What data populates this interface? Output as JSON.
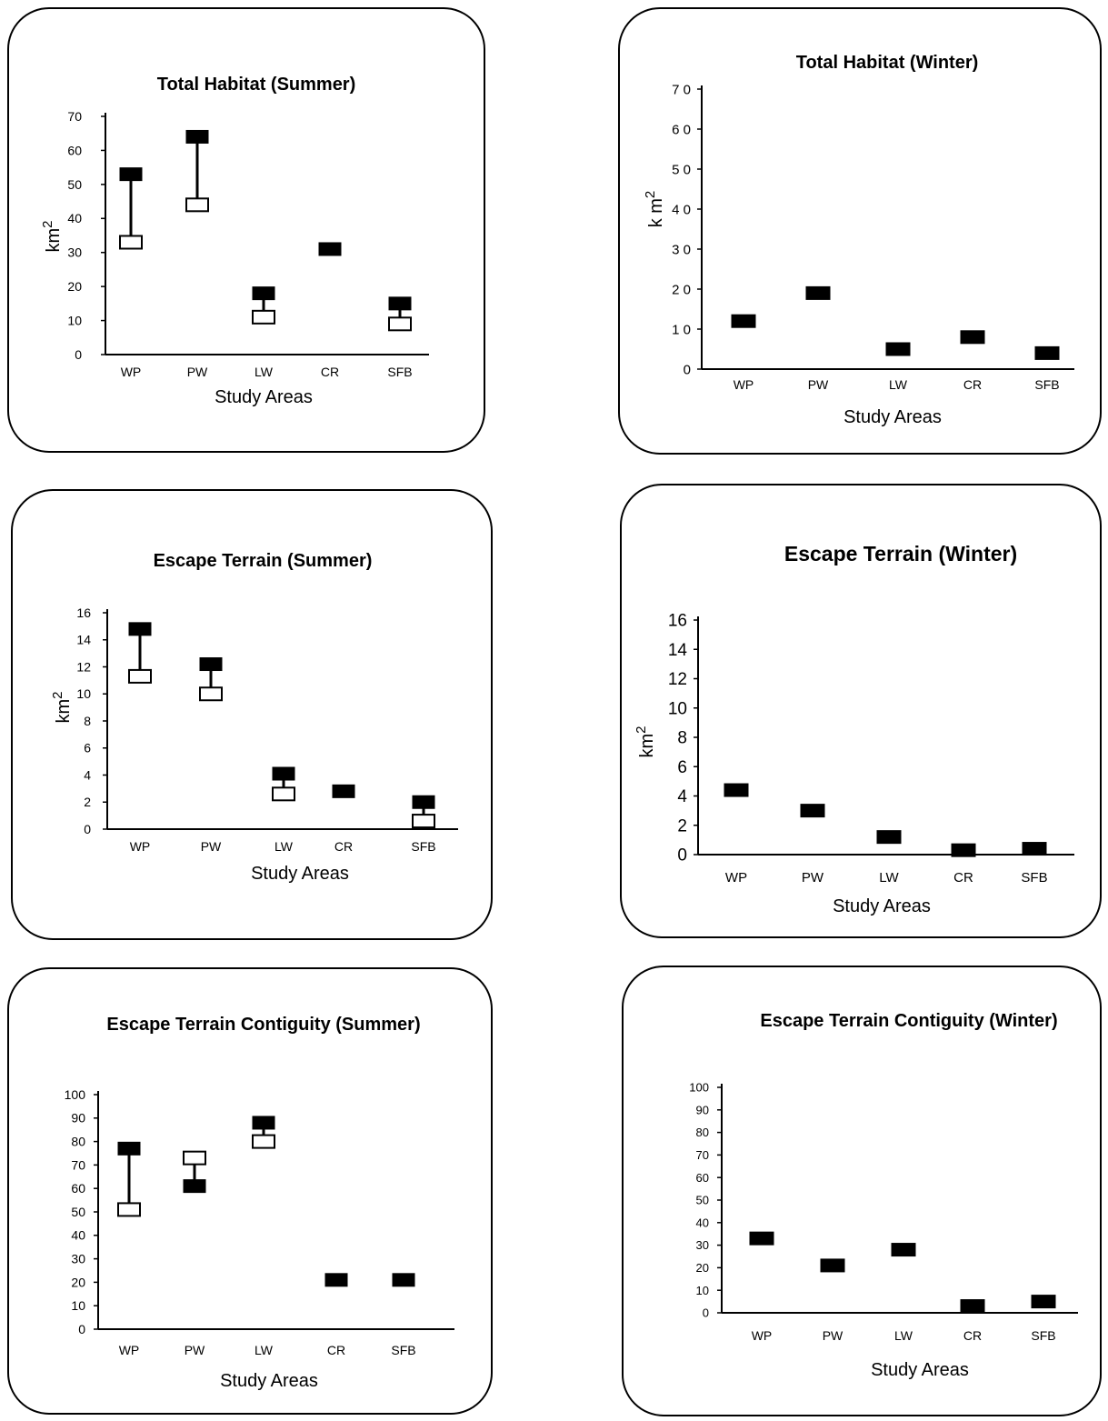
{
  "charts": [
    {
      "id": "total-habitat-summer",
      "title": "Total Habitat (Summer)",
      "xlabel": "Study Areas",
      "ylabel": "km",
      "ylabel_sup": "2"
    },
    {
      "id": "total-habitat-winter",
      "title": "Total Habitat (Winter)",
      "xlabel": "Study Areas",
      "ylabel": "k m",
      "ylabel_sup": "2"
    },
    {
      "id": "escape-terrain-summer",
      "title": "Escape Terrain (Summer)",
      "xlabel": "Study Areas",
      "ylabel": "km",
      "ylabel_sup": "2"
    },
    {
      "id": "escape-terrain-winter",
      "title": "Escape Terrain (Winter)",
      "xlabel": "Study Areas",
      "ylabel": "km",
      "ylabel_sup": "2"
    },
    {
      "id": "escape-terrain-contiguity-summer",
      "title": "Escape Terrain Contiguity (Summer)",
      "xlabel": "Study Areas",
      "ylabel": "",
      "ylabel_sup": ""
    },
    {
      "id": "escape-terrain-contiguity-winter",
      "title": "Escape Terrain Contiguity (Winter)",
      "xlabel": "Study Areas",
      "ylabel": "",
      "ylabel_sup": ""
    }
  ],
  "chart_data": [
    {
      "type": "scatter",
      "title": "Total Habitat (Summer)",
      "xlabel": "Study Areas",
      "ylabel": "km2",
      "categories": [
        "WP",
        "PW",
        "LW",
        "CR",
        "SFB"
      ],
      "ylim": [
        0,
        70
      ],
      "yticks": [
        0,
        10,
        20,
        30,
        40,
        50,
        60,
        70
      ],
      "ytick_labels": [
        "0",
        "10",
        "20",
        "30",
        "40",
        "50",
        "60",
        "70"
      ],
      "series": [
        {
          "marker": "filled",
          "values": [
            53,
            64,
            18,
            31,
            15
          ]
        },
        {
          "marker": "open",
          "values": [
            33,
            44,
            11,
            null,
            9
          ]
        }
      ]
    },
    {
      "type": "scatter",
      "title": "Total Habitat (Winter)",
      "xlabel": "Study Areas",
      "ylabel": "k m2",
      "categories": [
        "WP",
        "PW",
        "LW",
        "CR",
        "SFB"
      ],
      "ylim": [
        0,
        70
      ],
      "yticks": [
        0,
        10,
        20,
        30,
        40,
        50,
        60,
        70
      ],
      "ytick_labels": [
        "0",
        "1 0",
        "2 0",
        "3 0",
        "4 0",
        "5 0",
        "6 0",
        "7 0"
      ],
      "series": [
        {
          "marker": "filled",
          "values": [
            12,
            19,
            5,
            8,
            4
          ]
        }
      ]
    },
    {
      "type": "scatter",
      "title": "Escape Terrain (Summer)",
      "xlabel": "Study Areas",
      "ylabel": "km2",
      "categories": [
        "WP",
        "PW",
        "LW",
        "CR",
        "SFB"
      ],
      "ylim": [
        0,
        16
      ],
      "yticks": [
        0,
        2,
        4,
        6,
        8,
        10,
        12,
        14,
        16
      ],
      "ytick_labels": [
        "0",
        "2",
        "4",
        "6",
        "8",
        "10",
        "12",
        "14",
        "16"
      ],
      "series": [
        {
          "marker": "filled",
          "values": [
            14.8,
            12.2,
            4.1,
            2.8,
            2.0
          ]
        },
        {
          "marker": "open",
          "values": [
            11.3,
            10.0,
            2.6,
            null,
            0.6
          ]
        }
      ]
    },
    {
      "type": "scatter",
      "title": "Escape Terrain (Winter)",
      "xlabel": "Study Areas",
      "ylabel": "km2",
      "categories": [
        "WP",
        "PW",
        "LW",
        "CR",
        "SFB"
      ],
      "ylim": [
        0,
        16
      ],
      "yticks": [
        0,
        2,
        4,
        6,
        8,
        10,
        12,
        14,
        16
      ],
      "ytick_labels": [
        "0",
        "2",
        "4",
        "6",
        "8",
        "10",
        "12",
        "14",
        "16"
      ],
      "series": [
        {
          "marker": "filled",
          "values": [
            4.4,
            3.0,
            1.2,
            0.3,
            0.4
          ]
        }
      ]
    },
    {
      "type": "scatter",
      "title": "Escape Terrain Contiguity (Summer)",
      "xlabel": "Study Areas",
      "ylabel": "",
      "categories": [
        "WP",
        "PW",
        "LW",
        "CR",
        "SFB"
      ],
      "ylim": [
        0,
        100
      ],
      "yticks": [
        0,
        10,
        20,
        30,
        40,
        50,
        60,
        70,
        80,
        90,
        100
      ],
      "ytick_labels": [
        "0",
        "10",
        "20",
        "30",
        "40",
        "50",
        "60",
        "70",
        "80",
        "90",
        "100"
      ],
      "series": [
        {
          "marker": "filled",
          "values": [
            77,
            61,
            88,
            21,
            21
          ]
        },
        {
          "marker": "open",
          "values": [
            51,
            73,
            80,
            null,
            null
          ]
        }
      ]
    },
    {
      "type": "scatter",
      "title": "Escape Terrain Contiguity (Winter)",
      "xlabel": "Study Areas",
      "ylabel": "",
      "categories": [
        "WP",
        "PW",
        "LW",
        "CR",
        "SFB"
      ],
      "ylim": [
        0,
        100
      ],
      "yticks": [
        0,
        10,
        20,
        30,
        40,
        50,
        60,
        70,
        80,
        90,
        100
      ],
      "ytick_labels": [
        "0",
        "10",
        "20",
        "30",
        "40",
        "50",
        "60",
        "70",
        "80",
        "90",
        "100"
      ],
      "series": [
        {
          "marker": "filled",
          "values": [
            33,
            21,
            28,
            3,
            5
          ]
        }
      ]
    }
  ]
}
